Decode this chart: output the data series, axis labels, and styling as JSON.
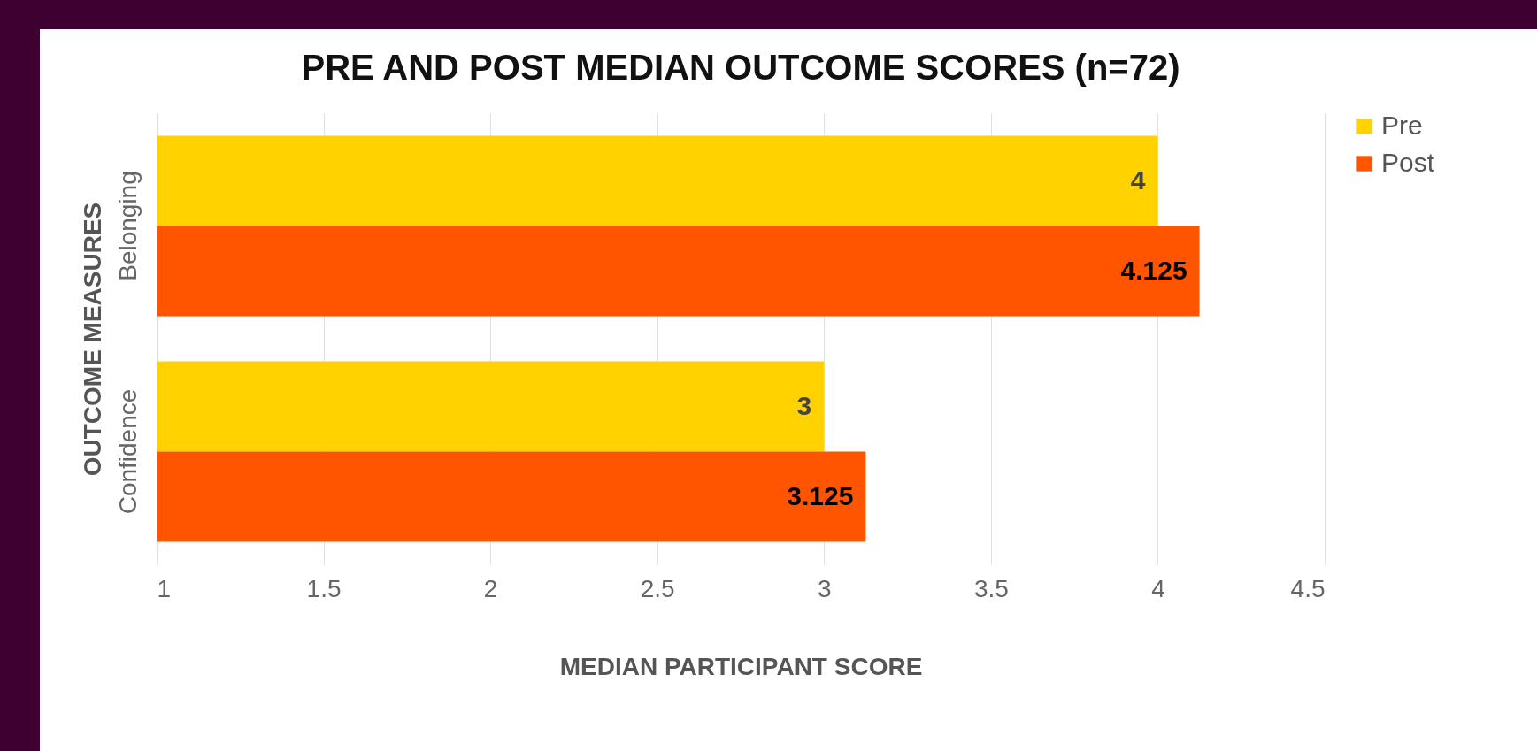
{
  "chart_data": {
    "type": "bar",
    "orientation": "horizontal",
    "title": "PRE AND POST MEDIAN OUTCOME SCORES (n=72)",
    "xlabel": "MEDIAN PARTICIPANT SCORE",
    "ylabel": "OUTCOME MEASURES",
    "categories": [
      "Belonging",
      "Confidence"
    ],
    "series": [
      {
        "name": "Pre",
        "color": "#ffd200",
        "values": [
          4,
          3
        ]
      },
      {
        "name": "Post",
        "color": "#ff5500",
        "values": [
          4.125,
          3.125
        ]
      }
    ],
    "xlim": [
      1,
      4.5
    ],
    "xticks": [
      1,
      1.5,
      2,
      2.5,
      3,
      3.5,
      4,
      4.5
    ],
    "grid": "x",
    "legend": "top right",
    "data_labels": true
  }
}
